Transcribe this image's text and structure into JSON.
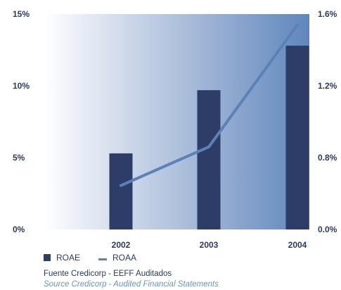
{
  "chart_data": {
    "type": "bar",
    "categories": [
      "2002",
      "2003",
      "2004"
    ],
    "series": [
      {
        "name": "ROAE",
        "type": "bar",
        "axis": "left",
        "color": "#2d3d67",
        "values": [
          5.3,
          9.7,
          12.8
        ]
      },
      {
        "name": "ROAA",
        "type": "line",
        "axis": "right",
        "color": "#5b82b7",
        "values": [
          0.49,
          0.86,
          1.54
        ]
      }
    ],
    "y_left": {
      "ticks": [
        "0%",
        "5%",
        "10%",
        "15%"
      ],
      "ylim": [
        0,
        15
      ]
    },
    "y_right": {
      "ticks": [
        "0.0%",
        "0.8%",
        "1.2%",
        "1.6%"
      ],
      "ylim": [
        0,
        1.6
      ]
    },
    "legend": "bottom-left",
    "grid": false
  },
  "source": {
    "es": "Fuente Credicorp - EEFF Auditados",
    "en": "Source Credicorp - Audited Financial Statements"
  }
}
